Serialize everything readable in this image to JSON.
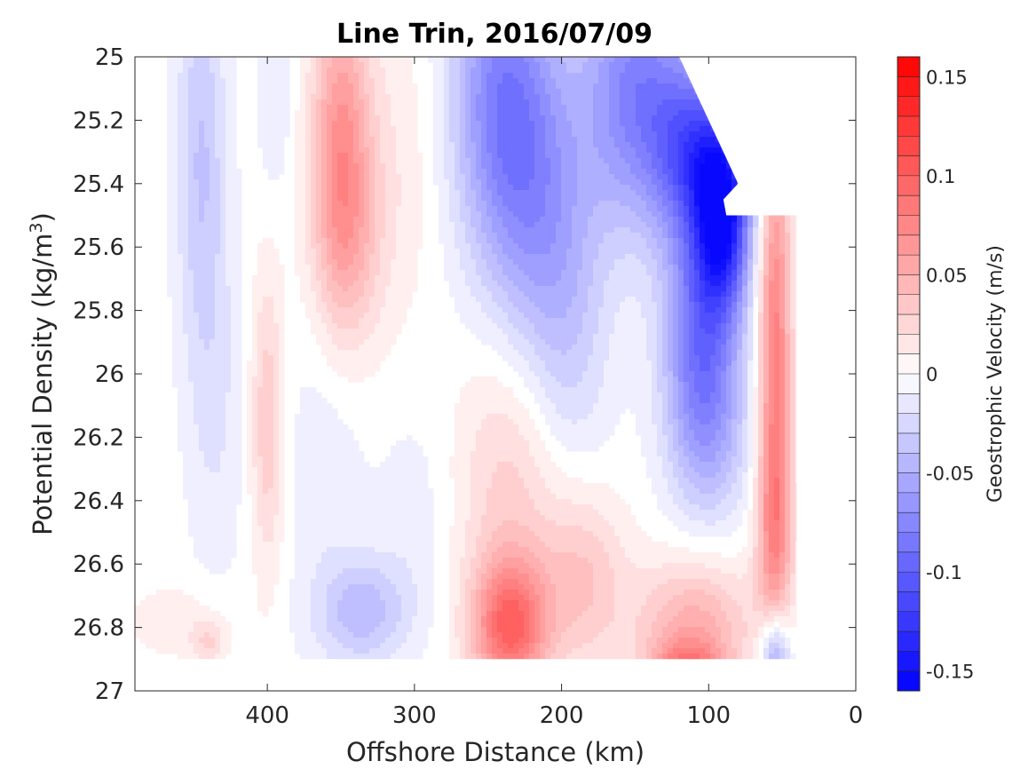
{
  "chart_data": {
    "type": "heatmap",
    "title": "Line Trin, 2016/07/09",
    "xlabel": "Offshore Distance (km)",
    "ylabel_main": "Potential Density (kg/m",
    "ylabel_sup": "3",
    "ylabel_close": ")",
    "colorbar_label": "Geostrophic Velocity (m/s)",
    "xlim": [
      490,
      0
    ],
    "ylim": [
      25,
      27
    ],
    "x_ticks": [
      {
        "value": 400,
        "label": "400"
      },
      {
        "value": 300,
        "label": "300"
      },
      {
        "value": 200,
        "label": "200"
      },
      {
        "value": 100,
        "label": "100"
      },
      {
        "value": 0,
        "label": "0"
      }
    ],
    "y_ticks": [
      {
        "value": 25,
        "label": "25"
      },
      {
        "value": 25.2,
        "label": "25.2"
      },
      {
        "value": 25.4,
        "label": "25.4"
      },
      {
        "value": 25.6,
        "label": "25.6"
      },
      {
        "value": 25.8,
        "label": "25.8"
      },
      {
        "value": 26,
        "label": "26"
      },
      {
        "value": 26.2,
        "label": "26.2"
      },
      {
        "value": 26.4,
        "label": "26.4"
      },
      {
        "value": 26.6,
        "label": "26.6"
      },
      {
        "value": 26.8,
        "label": "26.8"
      },
      {
        "value": 27,
        "label": "27"
      }
    ],
    "clim": [
      -0.16,
      0.16
    ],
    "colorbar_levels": 32,
    "colorbar_ticks": [
      {
        "value": 0.15,
        "label": "0.15"
      },
      {
        "value": 0.1,
        "label": "0.1"
      },
      {
        "value": 0.05,
        "label": "0.05"
      },
      {
        "value": 0,
        "label": "0"
      },
      {
        "value": -0.05,
        "label": "-0.05"
      },
      {
        "value": -0.1,
        "label": "-0.1"
      },
      {
        "value": -0.15,
        "label": "-0.15"
      }
    ],
    "colormap": {
      "negative": "#0000ff",
      "zero": "#ffffff",
      "positive": "#ff0000"
    },
    "features": [
      {
        "x": 445,
        "y": 25.3,
        "sx": 12,
        "sy": 0.45,
        "v": -0.035
      },
      {
        "x": 435,
        "y": 26.1,
        "sx": 14,
        "sy": 0.4,
        "v": -0.015
      },
      {
        "x": 395,
        "y": 25.15,
        "sx": 8,
        "sy": 0.2,
        "v": -0.015
      },
      {
        "x": 350,
        "y": 25.25,
        "sx": 14,
        "sy": 0.35,
        "v": 0.06
      },
      {
        "x": 345,
        "y": 25.6,
        "sx": 18,
        "sy": 0.25,
        "v": 0.03
      },
      {
        "x": 310,
        "y": 25.3,
        "sx": 22,
        "sy": 0.35,
        "v": 0.012
      },
      {
        "x": 400,
        "y": 26.15,
        "sx": 8,
        "sy": 0.32,
        "v": 0.035
      },
      {
        "x": 360,
        "y": 26.25,
        "sx": 20,
        "sy": 0.4,
        "v": -0.012
      },
      {
        "x": 335,
        "y": 26.75,
        "sx": 22,
        "sy": 0.12,
        "v": -0.04
      },
      {
        "x": 300,
        "y": 26.45,
        "sx": 18,
        "sy": 0.25,
        "v": -0.01
      },
      {
        "x": 240,
        "y": 25.1,
        "sx": 25,
        "sy": 0.35,
        "v": -0.07
      },
      {
        "x": 215,
        "y": 25.5,
        "sx": 28,
        "sy": 0.35,
        "v": -0.05
      },
      {
        "x": 150,
        "y": 25.1,
        "sx": 25,
        "sy": 0.3,
        "v": -0.075
      },
      {
        "x": 110,
        "y": 25.3,
        "sx": 20,
        "sy": 0.2,
        "v": -0.09
      },
      {
        "x": 90,
        "y": 25.5,
        "sx": 13,
        "sy": 0.2,
        "v": -0.13
      },
      {
        "x": 105,
        "y": 25.85,
        "sx": 18,
        "sy": 0.25,
        "v": -0.08
      },
      {
        "x": 100,
        "y": 26.2,
        "sx": 20,
        "sy": 0.2,
        "v": -0.04
      },
      {
        "x": 195,
        "y": 25.95,
        "sx": 20,
        "sy": 0.3,
        "v": -0.02
      },
      {
        "x": 235,
        "y": 26.8,
        "sx": 18,
        "sy": 0.15,
        "v": 0.09
      },
      {
        "x": 235,
        "y": 26.35,
        "sx": 25,
        "sy": 0.35,
        "v": 0.03
      },
      {
        "x": 185,
        "y": 26.65,
        "sx": 20,
        "sy": 0.2,
        "v": 0.035
      },
      {
        "x": 110,
        "y": 26.8,
        "sx": 28,
        "sy": 0.15,
        "v": 0.05
      },
      {
        "x": 115,
        "y": 26.95,
        "sx": 18,
        "sy": 0.07,
        "v": 0.07
      },
      {
        "x": 55,
        "y": 25.9,
        "sx": 8,
        "sy": 0.5,
        "v": 0.08
      },
      {
        "x": 55,
        "y": 26.5,
        "sx": 9,
        "sy": 0.22,
        "v": 0.045
      },
      {
        "x": 55,
        "y": 26.9,
        "sx": 7,
        "sy": 0.1,
        "v": -0.07
      },
      {
        "x": 460,
        "y": 26.78,
        "sx": 25,
        "sy": 0.08,
        "v": 0.012
      },
      {
        "x": 440,
        "y": 26.85,
        "sx": 8,
        "sy": 0.05,
        "v": 0.025
      }
    ],
    "masks": [
      {
        "shape": "triangle",
        "points": [
          [
            120,
            25.0
          ],
          [
            0,
            25.0
          ],
          [
            0,
            25.5
          ],
          [
            88,
            25.5
          ],
          [
            90,
            25.45
          ],
          [
            80,
            25.4
          ],
          [
            120,
            25.0
          ]
        ]
      },
      {
        "shape": "region",
        "points": [
          [
            80,
            25.0
          ],
          [
            0,
            25.0
          ],
          [
            0,
            25.3
          ],
          [
            40,
            25.3
          ],
          [
            40,
            25.4
          ],
          [
            80,
            25.4
          ]
        ]
      },
      {
        "shape": "region",
        "points": [
          [
            40,
            25.0
          ],
          [
            0,
            25.0
          ],
          [
            0,
            27.0
          ],
          [
            40,
            27.0
          ]
        ]
      },
      {
        "shape": "region",
        "points": [
          [
            490,
            26.9
          ],
          [
            0,
            26.9
          ],
          [
            0,
            27.0
          ],
          [
            490,
            27.0
          ]
        ]
      }
    ]
  }
}
